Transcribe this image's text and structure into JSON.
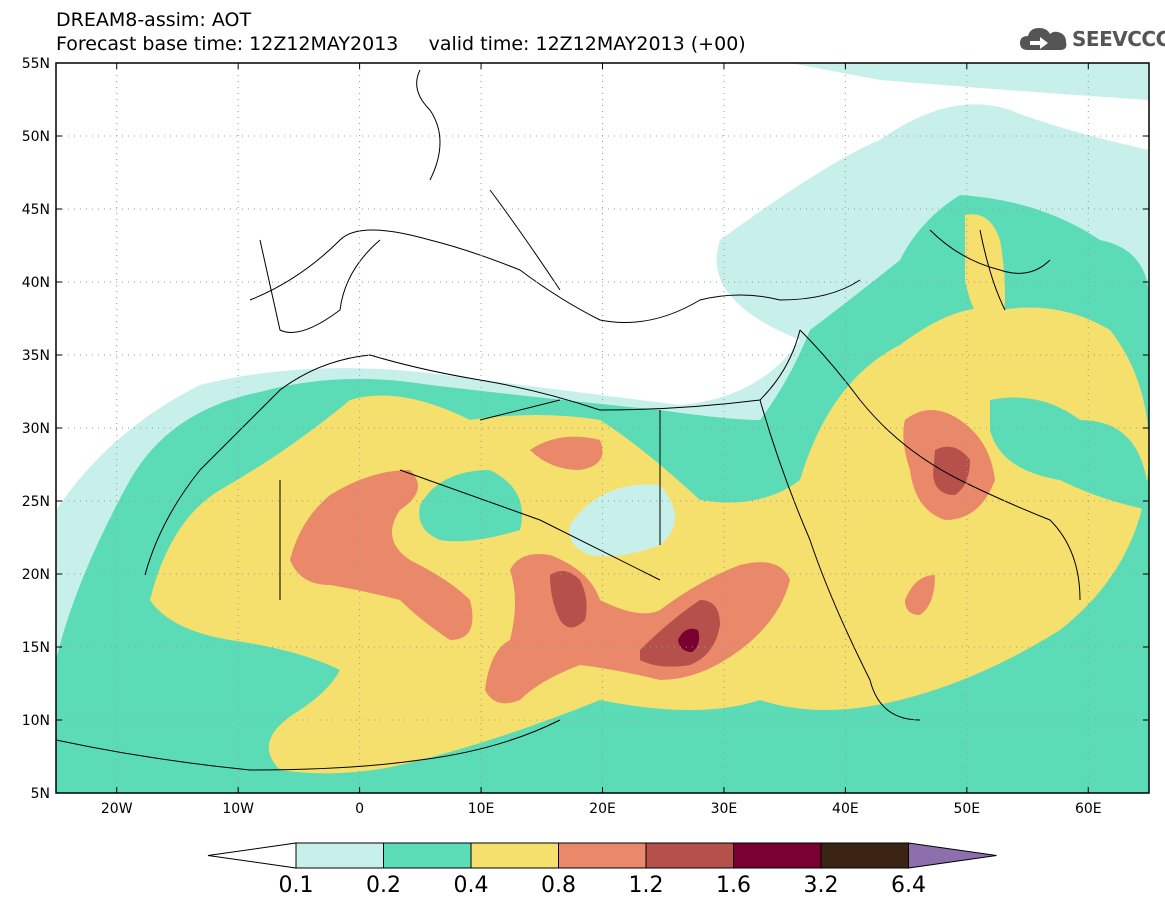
{
  "header": {
    "title_line1": "DREAM8-assim: AOT",
    "title_line2": "Forecast base time: 12Z12MAY2013     valid time: 12Z12MAY2013 (+00)",
    "logo_text": "SEEVCCC"
  },
  "map": {
    "lon_range": [
      -25,
      65
    ],
    "lat_range": [
      5,
      55
    ],
    "lat_ticks": [
      "5N",
      "10N",
      "15N",
      "20N",
      "25N",
      "30N",
      "35N",
      "40N",
      "45N",
      "50N",
      "55N"
    ],
    "lon_ticks": [
      "20W",
      "10W",
      "0",
      "10E",
      "20E",
      "30E",
      "40E",
      "50E",
      "60E"
    ],
    "grid": true
  },
  "colorbar": {
    "levels": [
      "0.1",
      "0.2",
      "0.4",
      "0.8",
      "1.2",
      "1.6",
      "3.2",
      "6.4"
    ],
    "colors": {
      "under": "#ffffff",
      "c1": "#c8f0ea",
      "c2": "#5bdcb6",
      "c3": "#f5e06e",
      "c4": "#e9896a",
      "c5": "#b5504b",
      "c6": "#7a0032",
      "c7": "#3b2413",
      "over": "#8e6fae"
    }
  }
}
